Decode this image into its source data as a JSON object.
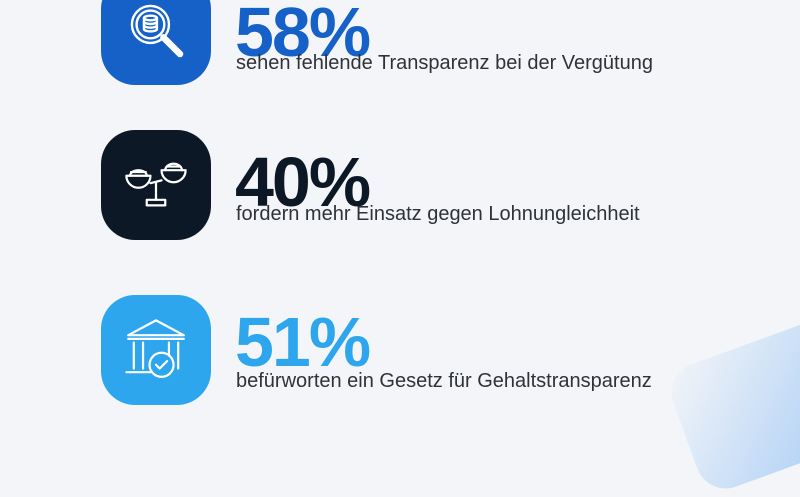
{
  "stats": [
    {
      "value": "58%",
      "label": "sehen fehlende Transparenz bei der Vergütung",
      "icon": "magnifier-coins-icon",
      "tile_color": "#1561c8",
      "value_color": "#1561c8"
    },
    {
      "value": "40%",
      "label": "fordern mehr Einsatz gegen Lohnungleichheit",
      "icon": "balance-scale-icon",
      "tile_color": "#0d1826",
      "value_color": "#0d1826"
    },
    {
      "value": "51%",
      "label": "befürworten ein Gesetz für Gehaltstransparenz",
      "icon": "building-checkmark-icon",
      "tile_color": "#2da6ee",
      "value_color": "#2da6ee"
    }
  ]
}
